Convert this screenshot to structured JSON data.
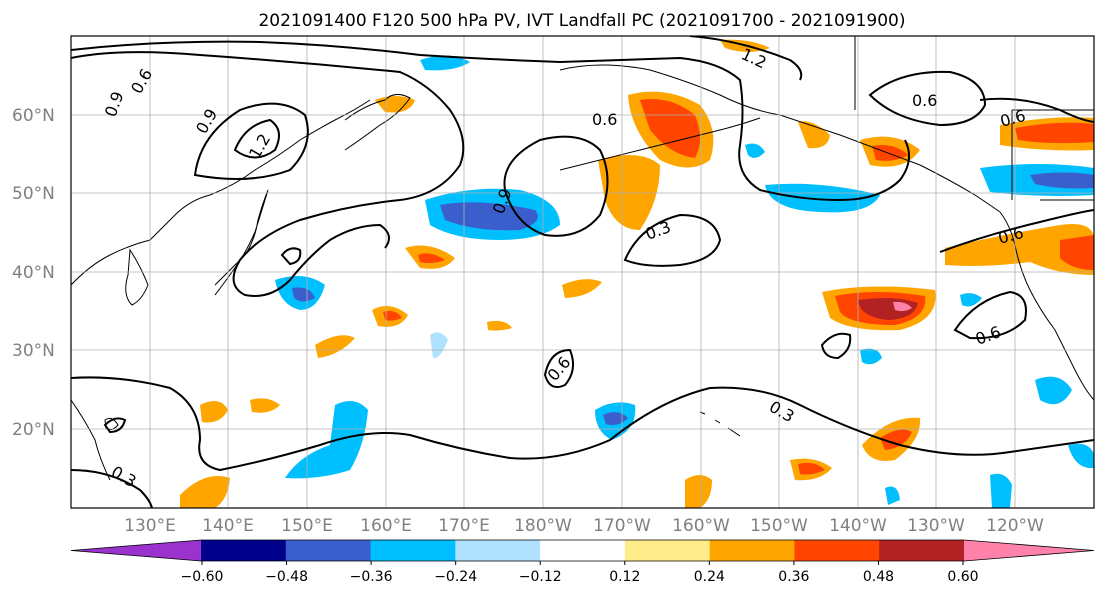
{
  "title": "2021091400 F120 500 hPa PV, IVT Landfall PC (2021091700 - 2021091900)",
  "map": {
    "lat_range": [
      10,
      70
    ],
    "lon_range": [
      120,
      250
    ],
    "lat_labels": [
      "60°N",
      "50°N",
      "40°N",
      "30°N",
      "20°N"
    ],
    "lon_labels": [
      "130°E",
      "140°E",
      "150°E",
      "160°E",
      "170°E",
      "180°W",
      "170°W",
      "160°W",
      "150°W",
      "140°W",
      "130°W",
      "120°W"
    ],
    "gridlines": true
  },
  "contour_labels": [
    "0.6",
    "0.9",
    "0.9",
    "1.2",
    "1.2",
    "0.6",
    "0.9",
    "0.3",
    "0.6",
    "0.6",
    "0.6",
    "0.6",
    "0.3",
    "0.3",
    "0.6"
  ],
  "colorbar": {
    "extend": "both",
    "tick_labels": [
      "−0.60",
      "−0.48",
      "−0.36",
      "−0.24",
      "−0.12",
      "0.12",
      "0.24",
      "0.36",
      "0.48",
      "0.60"
    ],
    "colors": [
      "#9a32cd",
      "#00008b",
      "#3a5fcd",
      "#00bfff",
      "#b0e2ff",
      "#ffffff",
      "#ffec8b",
      "#ffa500",
      "#ff4500",
      "#b22222",
      "#ff82ab"
    ]
  }
}
